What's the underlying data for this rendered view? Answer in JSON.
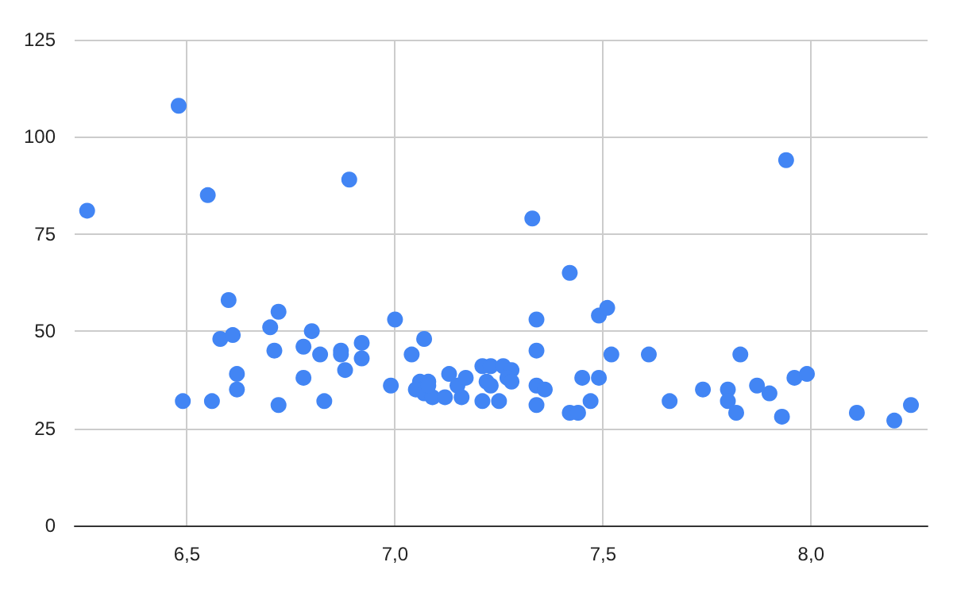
{
  "chart_data": {
    "type": "scatter",
    "color": "#4285f4",
    "marker": "circle",
    "grid": true,
    "xlim": [
      6.23,
      8.28
    ],
    "xticks": [
      {
        "value": 6.5,
        "label": "6,5"
      },
      {
        "value": 7,
        "label": "7,0"
      },
      {
        "value": 7.5,
        "label": "7,5"
      },
      {
        "value": 8,
        "label": "8,0"
      }
    ],
    "ylim": [
      0,
      125
    ],
    "yticks": [
      0,
      25,
      50,
      75,
      100,
      125
    ],
    "x": [
      6.26,
      6.48,
      6.49,
      6.55,
      6.56,
      6.58,
      6.6,
      6.61,
      6.62,
      6.62,
      6.7,
      6.71,
      6.72,
      6.72,
      6.78,
      6.78,
      6.8,
      6.82,
      6.83,
      6.87,
      6.87,
      6.88,
      6.89,
      6.92,
      6.92,
      6.99,
      7.0,
      7.04,
      7.07,
      7.06,
      7.08,
      7.05,
      7.07,
      7.09,
      7.08,
      7.13,
      7.12,
      7.16,
      7.15,
      7.17,
      7.21,
      7.23,
      7.22,
      7.23,
      7.21,
      7.25,
      7.26,
      7.28,
      7.27,
      7.28,
      7.33,
      7.34,
      7.34,
      7.34,
      7.36,
      7.34,
      7.42,
      7.42,
      7.44,
      7.45,
      7.47,
      7.49,
      7.51,
      7.49,
      7.52,
      7.61,
      7.66,
      7.74,
      7.8,
      7.8,
      7.82,
      7.83,
      7.87,
      7.9,
      7.93,
      7.94,
      7.96,
      7.99,
      8.11,
      8.2,
      8.24
    ],
    "values": [
      81,
      108,
      32,
      85,
      32,
      48,
      58,
      49,
      39,
      35,
      51,
      45,
      55,
      31,
      38,
      46,
      50,
      44,
      32,
      45,
      44,
      40,
      89,
      47,
      43,
      36,
      53,
      44,
      48,
      37,
      37,
      35,
      34,
      33,
      36,
      39,
      33,
      33,
      36,
      38,
      41,
      41,
      37,
      36,
      32,
      32,
      41,
      40,
      38,
      37,
      79,
      53,
      45,
      36,
      35,
      31,
      65,
      29,
      29,
      38,
      32,
      54,
      56,
      38,
      44,
      44,
      32,
      35,
      35,
      32,
      29,
      44,
      36,
      34,
      28,
      94,
      38,
      39,
      29,
      27,
      31
    ]
  }
}
